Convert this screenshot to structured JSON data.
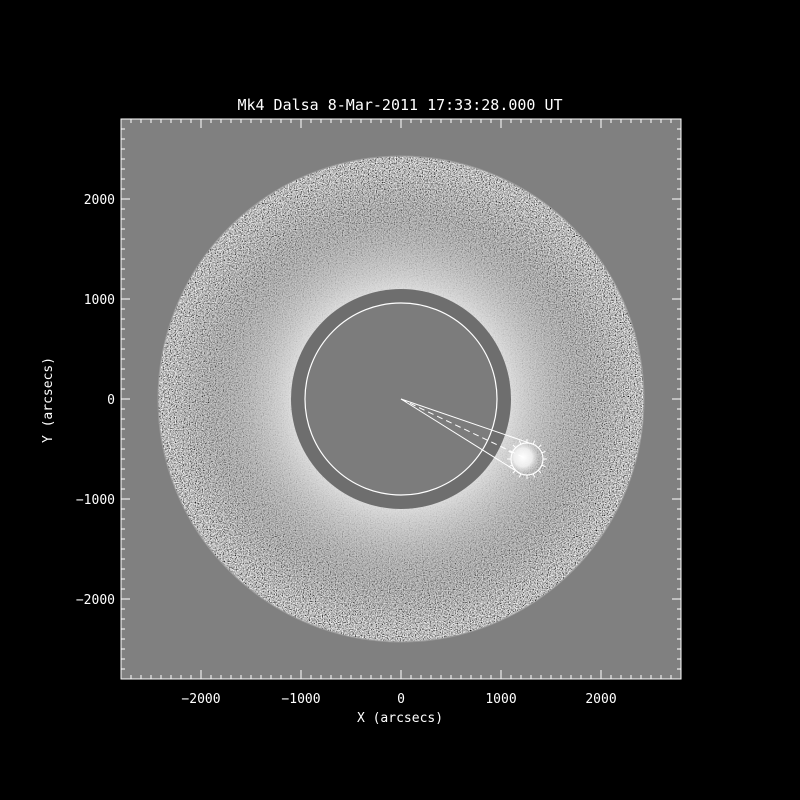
{
  "title": "Mk4 Dalsa  8-Mar-2011 17:33:28.000 UT",
  "axes": {
    "xlabel": "X (arcsecs)",
    "ylabel": "Y (arcsecs)",
    "xlim": [
      -2800,
      2800
    ],
    "ylim": [
      -2800,
      2800
    ],
    "x_ticks": [
      -2000,
      -1000,
      0,
      1000,
      2000
    ],
    "y_ticks": [
      -2000,
      -1000,
      0,
      1000,
      2000
    ],
    "x_tick_labels": [
      "−2000",
      "−1000",
      "0",
      "1000",
      "2000"
    ],
    "y_tick_labels": [
      "−2000",
      "−1000",
      "0",
      "1000",
      "2000"
    ]
  },
  "image": {
    "field_of_view_radius": 2430,
    "occulter_radius": 1100,
    "solar_limb_radius": 960,
    "bright_feature_center": [
      1260,
      -600
    ],
    "bright_feature_radius": 160
  },
  "colors": {
    "background": "#000000",
    "plot_area": "#808080",
    "foreground": "#ffffff",
    "occulter": "#6e6e6e",
    "interior": "#7c7c7c"
  }
}
